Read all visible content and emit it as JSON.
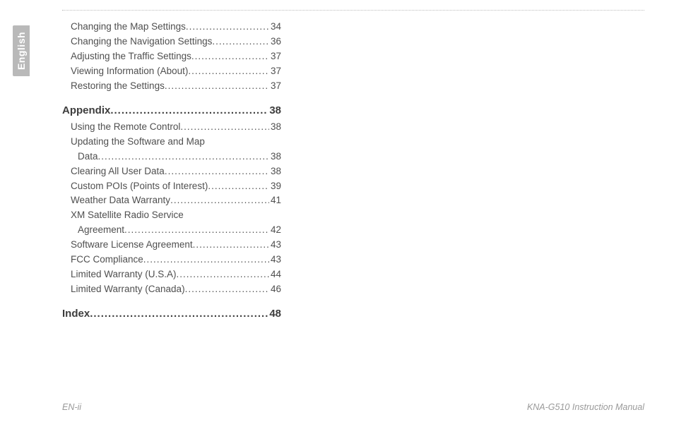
{
  "langTab": "English",
  "toc": {
    "preItems": [
      {
        "label": "Changing the Map Settings",
        "page": "34"
      },
      {
        "label": "Changing the Navigation Settings",
        "page": "36"
      },
      {
        "label": "Adjusting the Traffic Settings",
        "page": "37"
      },
      {
        "label": "Viewing Information (About)",
        "page": "37"
      },
      {
        "label": "Restoring the Settings",
        "page": "37"
      }
    ],
    "appendix": {
      "title": "Appendix",
      "page": "38"
    },
    "appendixItems": [
      {
        "label": "Using the Remote Control",
        "page": "38"
      },
      {
        "label": "Updating the Software and Map",
        "cont": "Data",
        "page": "38"
      },
      {
        "label": "Clearing All User Data",
        "page": "38"
      },
      {
        "label": "Custom POIs (Points of Interest)",
        "page": "39"
      },
      {
        "label": "Weather Data Warranty",
        "page": "41"
      },
      {
        "label": "XM Satellite Radio Service",
        "cont": "Agreement",
        "page": "42"
      },
      {
        "label": "Software License Agreement",
        "page": "43"
      },
      {
        "label": "FCC Compliance",
        "page": "43"
      },
      {
        "label": "Limited Warranty (U.S.A)",
        "page": "44"
      },
      {
        "label": "Limited Warranty (Canada)",
        "page": "46"
      }
    ],
    "index": {
      "title": "Index",
      "page": "48"
    }
  },
  "footer": {
    "left": "EN-ii",
    "right": "KNA-G510 Instruction Manual"
  }
}
